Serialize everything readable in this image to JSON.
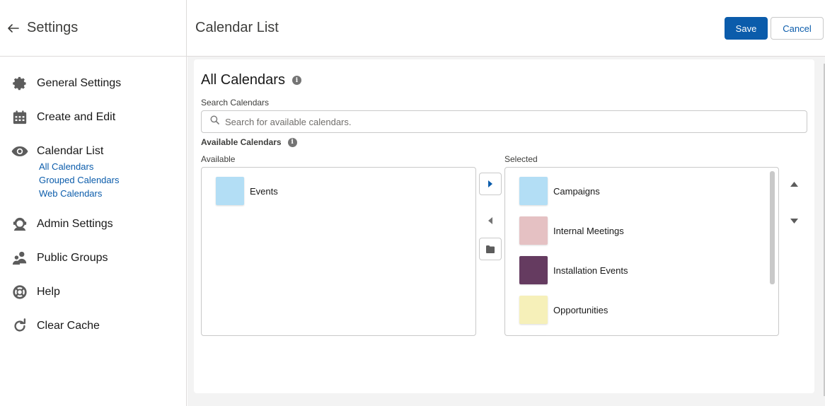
{
  "sidebar": {
    "title": "Settings",
    "items": [
      {
        "label": "General Settings",
        "icon": "gear-icon"
      },
      {
        "label": "Create and Edit",
        "icon": "calendar-icon"
      },
      {
        "label": "Calendar List",
        "icon": "eye-icon"
      },
      {
        "label": "Admin Settings",
        "icon": "user-admin-icon"
      },
      {
        "label": "Public Groups",
        "icon": "groups-icon"
      },
      {
        "label": "Help",
        "icon": "lifebuoy-icon"
      },
      {
        "label": "Clear Cache",
        "icon": "refresh-icon"
      }
    ],
    "subitems": [
      "All Calendars",
      "Grouped Calendars",
      "Web Calendars"
    ]
  },
  "header": {
    "title": "Calendar List",
    "save_label": "Save",
    "cancel_label": "Cancel"
  },
  "card": {
    "title": "All Calendars",
    "search_label": "Search Calendars",
    "search_placeholder": "Search for available calendars.",
    "available_calendars_label": "Available Calendars",
    "available_label": "Available",
    "selected_label": "Selected"
  },
  "available": [
    {
      "name": "Events",
      "color": "#b3def5"
    }
  ],
  "selected": [
    {
      "name": "Campaigns",
      "color": "#b3def5"
    },
    {
      "name": "Internal Meetings",
      "color": "#e5c1c3"
    },
    {
      "name": "Installation Events",
      "color": "#653b60"
    },
    {
      "name": "Opportunities",
      "color": "#f6f0b9"
    }
  ],
  "colors": {
    "brand": "#0b5cab",
    "border": "#c9c9c9",
    "background": "#f3f3f3"
  }
}
